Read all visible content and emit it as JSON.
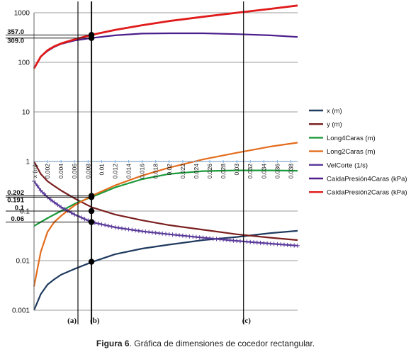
{
  "caption": {
    "label": "Figura 6",
    "text": ". Gráfica de dimensiones de cocedor rectangular."
  },
  "chart_data": {
    "type": "line",
    "title": "",
    "xlabel": "x (m)",
    "ylabel": "",
    "yscale": "log",
    "ylim": [
      0.001,
      1000
    ],
    "xlim": [
      0,
      0.039
    ],
    "y_ticks": [
      "0.001",
      "0.01",
      "0.1",
      "1",
      "10",
      "100",
      "1000"
    ],
    "x_ticks": [
      "0",
      "0.002",
      "0.004",
      "0.006",
      "0.008",
      "0.01",
      "0.012",
      "0.014",
      "0.016",
      "0.018",
      "0.02",
      "0.022",
      "0.024",
      "0.026",
      "0.028",
      "0.03",
      "0.032",
      "0.034",
      "0.036",
      "0.038"
    ],
    "grid": true,
    "legend_position": "right",
    "annotations_y": [
      "357.0",
      "309.0",
      "0.202",
      "0.191",
      "0.1",
      "0.06"
    ],
    "markers": [
      {
        "label": "(a)",
        "x": 0.0065
      },
      {
        "label": "(b)",
        "x": 0.0085
      },
      {
        "label": "(c)",
        "x": 0.031
      }
    ],
    "highlight_points": [
      {
        "x": 0.0085,
        "y": 357.0
      },
      {
        "x": 0.0085,
        "y": 309.0
      },
      {
        "x": 0.0085,
        "y": 0.202
      },
      {
        "x": 0.0085,
        "y": 0.191
      },
      {
        "x": 0.0085,
        "y": 0.1
      },
      {
        "x": 0.0085,
        "y": 0.06
      },
      {
        "x": 0.0085,
        "y": 0.0095
      }
    ],
    "series": [
      {
        "name": "x (m)",
        "color": "#1f3a5f",
        "x": [
          0,
          0.001,
          0.002,
          0.003,
          0.004,
          0.006,
          0.0085,
          0.012,
          0.016,
          0.02,
          0.025,
          0.03,
          0.035,
          0.039
        ],
        "y": [
          0.001,
          0.0021,
          0.0033,
          0.0042,
          0.0052,
          0.0068,
          0.0093,
          0.0135,
          0.0175,
          0.021,
          0.026,
          0.03,
          0.036,
          0.04
        ]
      },
      {
        "name": "y (m)",
        "color": "#7a1f1f",
        "x": [
          0,
          0.001,
          0.002,
          0.003,
          0.004,
          0.006,
          0.0085,
          0.012,
          0.016,
          0.02,
          0.025,
          0.03,
          0.035,
          0.039
        ],
        "y": [
          1.0,
          0.56,
          0.4,
          0.32,
          0.26,
          0.18,
          0.12,
          0.085,
          0.065,
          0.052,
          0.042,
          0.034,
          0.029,
          0.026
        ]
      },
      {
        "name": "Long4Caras (m)",
        "color": "#1a9a3a",
        "x": [
          0,
          0.001,
          0.002,
          0.003,
          0.004,
          0.006,
          0.0085,
          0.012,
          0.016,
          0.02,
          0.025,
          0.03,
          0.035,
          0.039
        ],
        "y": [
          0.05,
          0.06,
          0.072,
          0.085,
          0.1,
          0.14,
          0.191,
          0.3,
          0.44,
          0.56,
          0.64,
          0.66,
          0.66,
          0.65
        ]
      },
      {
        "name": "Long2Caras (m)",
        "color": "#e36c1c",
        "x": [
          0,
          0.001,
          0.002,
          0.003,
          0.004,
          0.006,
          0.0085,
          0.012,
          0.016,
          0.02,
          0.025,
          0.03,
          0.035,
          0.039
        ],
        "y": [
          0.003,
          0.015,
          0.038,
          0.06,
          0.08,
          0.13,
          0.202,
          0.33,
          0.52,
          0.75,
          1.1,
          1.5,
          2.0,
          2.4
        ]
      },
      {
        "name": "VelCorte  (1/s)",
        "color": "#5a3a9a",
        "x": [
          0,
          0.001,
          0.002,
          0.003,
          0.004,
          0.006,
          0.0085,
          0.012,
          0.016,
          0.02,
          0.025,
          0.03,
          0.035,
          0.039
        ],
        "y": [
          0.4,
          0.26,
          0.19,
          0.15,
          0.12,
          0.085,
          0.06,
          0.047,
          0.039,
          0.034,
          0.029,
          0.025,
          0.022,
          0.02
        ]
      },
      {
        "name": "CaídaPresión4Caras (kPa)",
        "color": "#4b1e8c",
        "x": [
          0,
          0.001,
          0.002,
          0.003,
          0.004,
          0.006,
          0.0085,
          0.012,
          0.016,
          0.02,
          0.025,
          0.03,
          0.035,
          0.039
        ],
        "y": [
          75,
          130,
          170,
          205,
          235,
          275,
          309,
          350,
          380,
          385,
          385,
          370,
          350,
          325
        ]
      },
      {
        "name": "CaídaPresión2Caras (kPa)",
        "color": "#e01b1b",
        "x": [
          0,
          0.001,
          0.002,
          0.003,
          0.004,
          0.006,
          0.0085,
          0.012,
          0.016,
          0.02,
          0.025,
          0.03,
          0.035,
          0.039
        ],
        "y": [
          75,
          130,
          175,
          210,
          240,
          290,
          357,
          450,
          560,
          680,
          830,
          1000,
          1200,
          1400
        ]
      }
    ]
  }
}
